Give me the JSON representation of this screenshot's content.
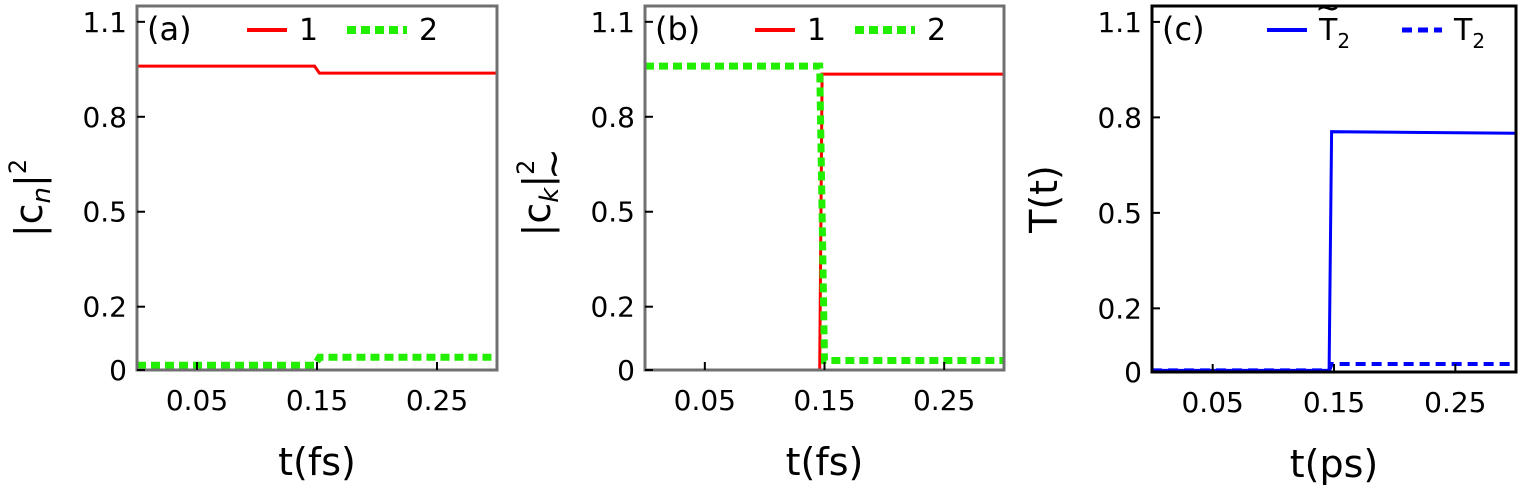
{
  "chart_data": [
    {
      "type": "line",
      "panel_label": "(a)",
      "xlabel": "t(fs)",
      "ylabel": "|c",
      "ylabel_sub": "n",
      "ylabel_sup": "2",
      "xlim": [
        0.0,
        0.3
      ],
      "ylim": [
        0.0,
        1.15
      ],
      "xticks": [
        "0.05",
        "0.15",
        "0.25"
      ],
      "yticks": [
        "0",
        "0.2",
        "0.5",
        "0.8",
        "1.1"
      ],
      "legend_position": "top",
      "series": [
        {
          "name": "1",
          "color": "#ff0000",
          "style": "solid",
          "x": [
            0.0,
            0.148,
            0.152,
            0.3
          ],
          "y": [
            0.96,
            0.96,
            0.938,
            0.938
          ]
        },
        {
          "name": "2",
          "color": "#22ee00",
          "style": "dotted",
          "x": [
            0.0,
            0.148,
            0.152,
            0.3
          ],
          "y": [
            0.015,
            0.015,
            0.04,
            0.04
          ]
        }
      ]
    },
    {
      "type": "line",
      "panel_label": "(b)",
      "xlabel": "t(fs)",
      "ylabel": "|c",
      "ylabel_sub": "k",
      "ylabel_sup": "2",
      "ylabel_accent": "~",
      "xlim": [
        0.0,
        0.3
      ],
      "ylim": [
        0.0,
        1.15
      ],
      "xticks": [
        "0.05",
        "0.15",
        "0.25"
      ],
      "yticks": [
        "0",
        "0.2",
        "0.5",
        "0.8",
        "1.1"
      ],
      "legend_position": "top",
      "series": [
        {
          "name": "1",
          "color": "#ff0000",
          "style": "solid",
          "x": [
            0.0,
            0.146,
            0.148,
            0.3
          ],
          "y": [
            0.0,
            0.0,
            0.935,
            0.935
          ]
        },
        {
          "name": "2",
          "color": "#22ee00",
          "style": "dotted",
          "x": [
            0.0,
            0.146,
            0.15,
            0.3
          ],
          "y": [
            0.96,
            0.96,
            0.03,
            0.03
          ]
        }
      ]
    },
    {
      "type": "line",
      "panel_label": "(c)",
      "xlabel": "t(ps)",
      "ylabel": "T(t)",
      "xlim": [
        0.0,
        0.3
      ],
      "ylim": [
        0.0,
        1.15
      ],
      "xticks": [
        "0.05",
        "0.15",
        "0.25"
      ],
      "yticks": [
        "0",
        "0.2",
        "0.5",
        "0.8",
        "1.1"
      ],
      "legend_position": "top-right",
      "series": [
        {
          "name": "T",
          "name_sub": "2",
          "name_accent": "~",
          "color": "#0000ff",
          "style": "solid",
          "x": [
            0.0,
            0.146,
            0.148,
            0.3
          ],
          "y": [
            0.005,
            0.005,
            0.755,
            0.75
          ]
        },
        {
          "name": "T",
          "name_sub": "2",
          "color": "#0000ff",
          "style": "dashed",
          "x": [
            0.0,
            0.146,
            0.148,
            0.3
          ],
          "y": [
            0.005,
            0.005,
            0.025,
            0.025
          ]
        }
      ]
    }
  ]
}
